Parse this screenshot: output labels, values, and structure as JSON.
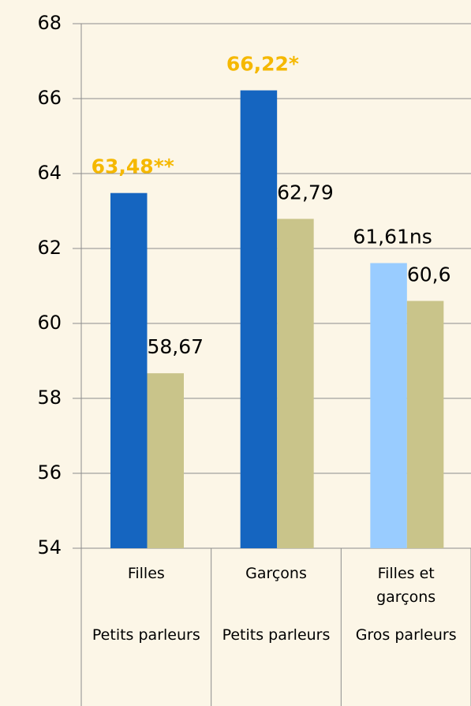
{
  "chart_data": {
    "type": "bar",
    "categories": [
      "Filles",
      "Garçons",
      "Filles et garçons"
    ],
    "category_groups": [
      "Petits parleurs",
      "Petits parleurs",
      "Gros parleurs"
    ],
    "series": [
      {
        "colors": [
          "#1565c0",
          "#1565c0",
          "#99ccff"
        ],
        "values": [
          63.48,
          66.22,
          61.61
        ],
        "value_labels": [
          "63,48**",
          "66,22*",
          "61,61ns"
        ],
        "label_colors": [
          "#f5b800",
          "#f5b800",
          "#000000"
        ],
        "label_weights": [
          "bold",
          "bold",
          "normal"
        ]
      },
      {
        "colors": [
          "#c9c48a",
          "#c9c48a",
          "#c9c48a"
        ],
        "values": [
          58.67,
          62.79,
          60.6
        ],
        "value_labels": [
          "58,67",
          "62,79",
          "60,6"
        ],
        "label_colors": [
          "#000000",
          "#000000",
          "#000000"
        ],
        "label_weights": [
          "normal",
          "normal",
          "normal"
        ]
      }
    ],
    "ylim": [
      54,
      68
    ],
    "yticks": [
      54,
      56,
      58,
      60,
      62,
      64,
      66,
      68
    ],
    "grid": true
  }
}
